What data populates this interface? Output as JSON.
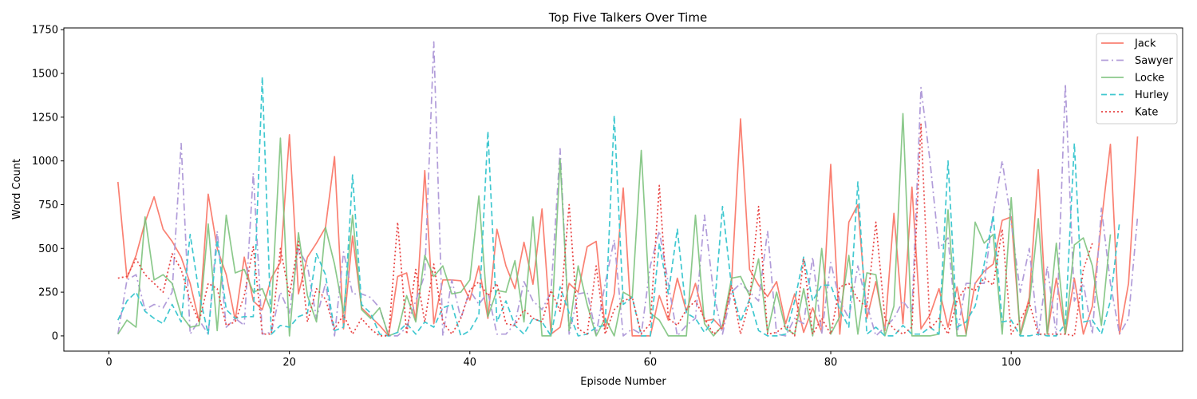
{
  "chart_data": {
    "type": "line",
    "title": "Top Five Talkers Over Time",
    "xlabel": "Episode Number",
    "ylabel": "Word Count",
    "xlim": [
      -5,
      119
    ],
    "ylim": [
      -87,
      1760
    ],
    "xticks": [
      0,
      20,
      40,
      60,
      80,
      100
    ],
    "yticks": [
      0,
      250,
      500,
      750,
      1000,
      1250,
      1500,
      1750
    ],
    "grid": false,
    "legend_position": "top-right",
    "x_start": 1,
    "series": [
      {
        "name": "Jack",
        "color": "#fa8072",
        "dash": "solid",
        "opacity": 1.0,
        "values": [
          880,
          330,
          460,
          650,
          795,
          610,
          540,
          450,
          300,
          80,
          810,
          500,
          350,
          90,
          450,
          200,
          150,
          330,
          420,
          1150,
          240,
          450,
          530,
          620,
          1025,
          40,
          570,
          160,
          110,
          60,
          0,
          340,
          360,
          90,
          945,
          70,
          320,
          320,
          315,
          205,
          400,
          100,
          610,
          400,
          270,
          535,
          295,
          725,
          10,
          50,
          300,
          250,
          510,
          540,
          40,
          240,
          845,
          0,
          0,
          0,
          230,
          90,
          330,
          140,
          300,
          85,
          95,
          40,
          300,
          1240,
          380,
          290,
          225,
          310,
          70,
          240,
          20,
          160,
          20,
          980,
          10,
          650,
          750,
          100,
          310,
          30,
          700,
          70,
          850,
          40,
          120,
          270,
          50,
          280,
          10,
          300,
          370,
          410,
          660,
          680,
          10,
          220,
          950,
          10,
          330,
          10,
          330,
          10,
          170,
          650,
          1095,
          10,
          300,
          1140
        ]
      },
      {
        "name": "Sawyer",
        "color": "#b19cd9",
        "dash": "dashdot",
        "opacity": 1.0,
        "values": [
          10,
          320,
          350,
          150,
          180,
          160,
          250,
          1100,
          10,
          90,
          10,
          600,
          50,
          100,
          60,
          930,
          10,
          20,
          250,
          130,
          500,
          400,
          100,
          300,
          0,
          480,
          240,
          240,
          220,
          160,
          0,
          0,
          50,
          200,
          350,
          1680,
          0,
          320,
          100,
          260,
          180,
          250,
          10,
          10,
          70,
          310,
          200,
          150,
          250,
          1070,
          10,
          240,
          250,
          10,
          300,
          550,
          0,
          40,
          10,
          400,
          600,
          300,
          0,
          60,
          100,
          690,
          250,
          10,
          250,
          300,
          250,
          200,
          600,
          10,
          0,
          100,
          70,
          450,
          10,
          420,
          200,
          100,
          400,
          180,
          0,
          50,
          100,
          200,
          130,
          1420,
          1000,
          500,
          560,
          10,
          300,
          300,
          300,
          700,
          1000,
          650,
          250,
          500,
          0,
          400,
          0,
          1440,
          200,
          300,
          10,
          730,
          300,
          10,
          100,
          680
        ]
      },
      {
        "name": "Locke",
        "color": "#77bf77",
        "dash": "solid",
        "opacity": 0.85,
        "values": [
          10,
          90,
          50,
          680,
          320,
          350,
          300,
          120,
          50,
          60,
          640,
          30,
          690,
          360,
          380,
          250,
          270,
          140,
          1130,
          0,
          590,
          230,
          80,
          620,
          410,
          130,
          690,
          150,
          100,
          160,
          0,
          20,
          230,
          80,
          460,
          340,
          400,
          240,
          250,
          320,
          800,
          110,
          260,
          250,
          430,
          80,
          680,
          0,
          0,
          1010,
          30,
          400,
          180,
          0,
          100,
          0,
          250,
          220,
          1060,
          130,
          90,
          0,
          0,
          0,
          690,
          70,
          0,
          60,
          330,
          340,
          230,
          440,
          20,
          250,
          40,
          10,
          270,
          0,
          500,
          10,
          110,
          460,
          10,
          360,
          350,
          0,
          170,
          1270,
          0,
          0,
          0,
          10,
          720,
          0,
          0,
          650,
          530,
          580,
          10,
          790,
          0,
          180,
          670,
          10,
          530,
          10,
          520,
          560,
          400,
          60,
          580
        ]
      },
      {
        "name": "Hurley",
        "color": "#40c8d0",
        "dash": "dashed",
        "opacity": 1.0,
        "values": [
          90,
          200,
          250,
          140,
          100,
          70,
          180,
          80,
          580,
          240,
          10,
          550,
          150,
          100,
          110,
          110,
          1480,
          10,
          60,
          50,
          110,
          130,
          470,
          350,
          30,
          50,
          920,
          180,
          130,
          10,
          0,
          20,
          70,
          10,
          80,
          50,
          160,
          180,
          0,
          30,
          120,
          1170,
          80,
          200,
          60,
          10,
          100,
          80,
          0,
          280,
          130,
          0,
          10,
          50,
          60,
          1260,
          180,
          220,
          0,
          0,
          530,
          240,
          610,
          130,
          100,
          20,
          90,
          740,
          280,
          80,
          210,
          30,
          0,
          0,
          10,
          200,
          450,
          200,
          290,
          290,
          150,
          50,
          880,
          10,
          50,
          0,
          0,
          60,
          10,
          10,
          50,
          10,
          1000,
          50,
          80,
          170,
          410,
          690,
          80,
          90,
          0,
          0,
          10,
          0,
          0,
          70,
          1100,
          80,
          90,
          10,
          200,
          650
        ]
      },
      {
        "name": "Kate",
        "color": "#e84545",
        "dash": "dotted",
        "opacity": 1.0,
        "values": [
          330,
          340,
          440,
          350,
          300,
          250,
          470,
          380,
          200,
          80,
          300,
          270,
          60,
          80,
          230,
          510,
          10,
          10,
          500,
          230,
          540,
          80,
          270,
          210,
          40,
          120,
          10,
          100,
          40,
          0,
          0,
          650,
          10,
          380,
          80,
          410,
          80,
          10,
          100,
          260,
          310,
          230,
          300,
          70,
          60,
          150,
          100,
          80,
          260,
          140,
          750,
          40,
          10,
          400,
          10,
          150,
          200,
          220,
          10,
          70,
          860,
          100,
          60,
          150,
          200,
          100,
          10,
          50,
          290,
          10,
          200,
          740,
          10,
          20,
          60,
          0,
          440,
          10,
          100,
          10,
          280,
          300,
          210,
          160,
          650,
          100,
          40,
          10,
          50,
          1210,
          40,
          100,
          10,
          200,
          280,
          260,
          330,
          290,
          610,
          10,
          90,
          190,
          10,
          10,
          10,
          10,
          0,
          380,
          530
        ]
      }
    ]
  }
}
